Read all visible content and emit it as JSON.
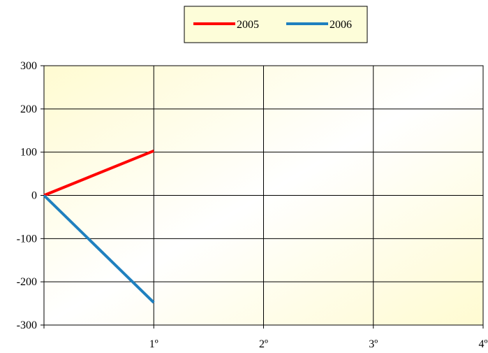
{
  "chart_data": {
    "type": "line",
    "title": "",
    "xlabel": "",
    "ylabel": "",
    "x_categories": [
      "",
      "1º",
      "2º",
      "3º",
      "4º"
    ],
    "ylim": [
      -300,
      300
    ],
    "yticks": [
      300,
      200,
      100,
      0,
      -100,
      -200,
      -300
    ],
    "ytick_labels": [
      "300",
      "200",
      "100",
      "0",
      "-100",
      "-200",
      "-300"
    ],
    "grid": true,
    "legend_position": "top-center",
    "background_colors": [
      "#fffbd1",
      "#ffffff"
    ],
    "series": [
      {
        "name": "2005",
        "color": "#ff0000",
        "values": [
          0,
          103
        ]
      },
      {
        "name": "2006",
        "color": "#1f80bf",
        "values": [
          0,
          -248
        ]
      }
    ]
  }
}
